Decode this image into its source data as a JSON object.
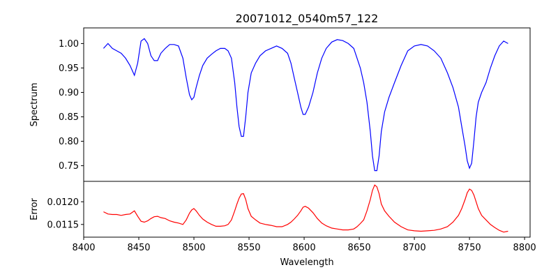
{
  "figure": {
    "title": "20071012_0540m57_122"
  },
  "chart_data": [
    {
      "type": "line",
      "panel": "top",
      "xlabel": "",
      "ylabel": "Spectrum",
      "xlim": [
        8400,
        8805
      ],
      "ylim": [
        0.718,
        1.032
      ],
      "yticks": [
        0.75,
        0.8,
        0.85,
        0.9,
        0.95,
        1.0
      ],
      "ytick_labels": [
        "0.75",
        "0.80",
        "0.85",
        "0.90",
        "0.95",
        "1.00"
      ],
      "grid": false,
      "color": "#0000ff",
      "series": [
        {
          "x": [
            8418,
            8422,
            8426,
            8430,
            8434,
            8438,
            8442,
            8446,
            8449,
            8452,
            8455,
            8458,
            8461,
            8464,
            8467,
            8470,
            8474,
            8478,
            8482,
            8486,
            8490,
            8493,
            8496,
            8498,
            8500,
            8502,
            8505,
            8508,
            8512,
            8516,
            8520,
            8524,
            8528,
            8531,
            8534,
            8537,
            8539,
            8541,
            8543,
            8545,
            8547,
            8549,
            8552,
            8556,
            8560,
            8565,
            8570,
            8575,
            8580,
            8585,
            8588,
            8591,
            8594,
            8597,
            8599,
            8601,
            8604,
            8608,
            8612,
            8616,
            8620,
            8625,
            8630,
            8635,
            8640,
            8645,
            8648,
            8651,
            8654,
            8657,
            8660,
            8662,
            8664,
            8666,
            8668,
            8670,
            8673,
            8677,
            8682,
            8688,
            8694,
            8700,
            8706,
            8712,
            8718,
            8724,
            8730,
            8735,
            8740,
            8743,
            8746,
            8748,
            8750,
            8752,
            8754,
            8756,
            8758,
            8761,
            8765,
            8769,
            8773,
            8777,
            8781,
            8785
          ],
          "y": [
            0.99,
            1.0,
            0.99,
            0.985,
            0.98,
            0.97,
            0.955,
            0.935,
            0.96,
            1.005,
            1.01,
            1.0,
            0.975,
            0.965,
            0.965,
            0.98,
            0.99,
            0.998,
            0.998,
            0.995,
            0.97,
            0.93,
            0.895,
            0.885,
            0.89,
            0.91,
            0.935,
            0.955,
            0.97,
            0.978,
            0.985,
            0.99,
            0.99,
            0.985,
            0.97,
            0.92,
            0.87,
            0.83,
            0.81,
            0.81,
            0.85,
            0.9,
            0.94,
            0.96,
            0.975,
            0.985,
            0.99,
            0.995,
            0.99,
            0.98,
            0.96,
            0.93,
            0.9,
            0.87,
            0.855,
            0.855,
            0.87,
            0.9,
            0.94,
            0.97,
            0.99,
            1.003,
            1.008,
            1.006,
            1.0,
            0.99,
            0.97,
            0.95,
            0.92,
            0.88,
            0.82,
            0.77,
            0.74,
            0.74,
            0.77,
            0.82,
            0.86,
            0.89,
            0.92,
            0.955,
            0.985,
            0.995,
            0.998,
            0.995,
            0.985,
            0.97,
            0.94,
            0.91,
            0.87,
            0.83,
            0.79,
            0.76,
            0.745,
            0.755,
            0.8,
            0.85,
            0.88,
            0.9,
            0.92,
            0.95,
            0.975,
            0.995,
            1.005,
            1.0
          ]
        }
      ]
    },
    {
      "type": "line",
      "panel": "bottom",
      "xlabel": "Wavelength",
      "ylabel": "Error",
      "xlim": [
        8400,
        8805
      ],
      "ylim": [
        0.01122,
        0.01245
      ],
      "xticks": [
        8400,
        8450,
        8500,
        8550,
        8600,
        8650,
        8700,
        8750,
        8800
      ],
      "xtick_labels": [
        "8400",
        "8450",
        "8500",
        "8550",
        "8600",
        "8650",
        "8700",
        "8750",
        "8800"
      ],
      "yticks": [
        0.0115,
        0.012
      ],
      "ytick_labels": [
        "0.0115",
        "0.0120"
      ],
      "grid": false,
      "color": "#ff0000",
      "series": [
        {
          "x": [
            8418,
            8422,
            8426,
            8430,
            8434,
            8438,
            8442,
            8446,
            8449,
            8452,
            8455,
            8458,
            8461,
            8464,
            8467,
            8470,
            8474,
            8478,
            8482,
            8486,
            8490,
            8493,
            8496,
            8498,
            8500,
            8502,
            8505,
            8508,
            8512,
            8516,
            8520,
            8524,
            8528,
            8531,
            8534,
            8537,
            8539,
            8541,
            8543,
            8545,
            8547,
            8549,
            8552,
            8556,
            8560,
            8565,
            8570,
            8575,
            8580,
            8585,
            8588,
            8591,
            8594,
            8597,
            8599,
            8601,
            8604,
            8608,
            8612,
            8616,
            8620,
            8625,
            8630,
            8635,
            8640,
            8645,
            8648,
            8651,
            8654,
            8657,
            8660,
            8662,
            8664,
            8666,
            8668,
            8670,
            8673,
            8677,
            8682,
            8688,
            8694,
            8700,
            8706,
            8712,
            8718,
            8724,
            8730,
            8735,
            8740,
            8743,
            8746,
            8748,
            8750,
            8752,
            8754,
            8756,
            8758,
            8761,
            8765,
            8769,
            8773,
            8777,
            8781,
            8785
          ],
          "y": [
            0.01178,
            0.01173,
            0.01172,
            0.01172,
            0.0117,
            0.01172,
            0.01173,
            0.0118,
            0.01168,
            0.01157,
            0.01155,
            0.01158,
            0.01163,
            0.01167,
            0.01168,
            0.01165,
            0.01163,
            0.01158,
            0.01155,
            0.01153,
            0.0115,
            0.0116,
            0.01175,
            0.01182,
            0.01185,
            0.0118,
            0.0117,
            0.01162,
            0.01155,
            0.0115,
            0.01146,
            0.01146,
            0.01147,
            0.0115,
            0.0116,
            0.0118,
            0.01195,
            0.01208,
            0.01217,
            0.01218,
            0.01205,
            0.01185,
            0.01168,
            0.0116,
            0.01153,
            0.0115,
            0.01148,
            0.01145,
            0.01145,
            0.0115,
            0.01155,
            0.01162,
            0.0117,
            0.0118,
            0.01188,
            0.0119,
            0.01186,
            0.01176,
            0.01163,
            0.01153,
            0.01147,
            0.01142,
            0.0114,
            0.01138,
            0.01138,
            0.0114,
            0.01145,
            0.01152,
            0.0116,
            0.0118,
            0.01205,
            0.01225,
            0.01237,
            0.01233,
            0.01218,
            0.01195,
            0.0118,
            0.01168,
            0.01155,
            0.01145,
            0.01138,
            0.01136,
            0.01135,
            0.01136,
            0.01137,
            0.0114,
            0.01145,
            0.01155,
            0.0117,
            0.01185,
            0.01205,
            0.0122,
            0.01228,
            0.01225,
            0.01215,
            0.012,
            0.01185,
            0.0117,
            0.0116,
            0.0115,
            0.01143,
            0.01137,
            0.01133,
            0.01135
          ]
        }
      ]
    }
  ]
}
